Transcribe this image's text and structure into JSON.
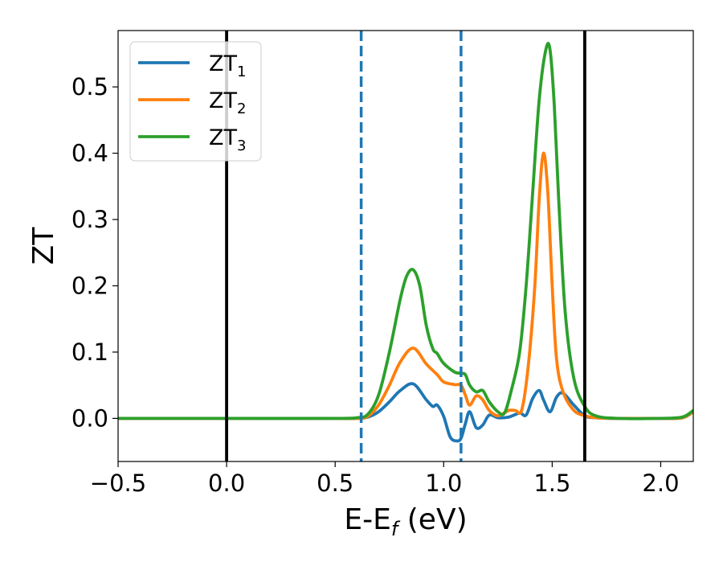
{
  "chart_data": {
    "type": "line",
    "xlabel_main": "E-E",
    "xlabel_sub": "f",
    "xlabel_unit": " (eV)",
    "ylabel": "ZT",
    "xlim": [
      -0.5,
      2.15
    ],
    "ylim": [
      -0.065,
      0.585
    ],
    "xticks": [
      -0.5,
      0.0,
      0.5,
      1.0,
      1.5,
      2.0
    ],
    "xtick_labels": [
      "−0.5",
      "0.0",
      "0.5",
      "1.0",
      "1.5",
      "2.0"
    ],
    "yticks": [
      0.0,
      0.1,
      0.2,
      0.3,
      0.4,
      0.5
    ],
    "ytick_labels": [
      "0.0",
      "0.1",
      "0.2",
      "0.3",
      "0.4",
      "0.5"
    ],
    "grid": false,
    "legend_position": "top-left",
    "vlines": [
      {
        "x": 0.0,
        "color": "#000000",
        "style": "solid"
      },
      {
        "x": 1.65,
        "color": "#000000",
        "style": "solid"
      },
      {
        "x": 0.62,
        "color": "#1f77b4",
        "style": "dashed"
      },
      {
        "x": 1.08,
        "color": "#1f77b4",
        "style": "dashed"
      }
    ],
    "series": [
      {
        "name_main": "ZT",
        "name_sub": "1",
        "color": "#1f77b4",
        "x": [
          -0.5,
          0.0,
          0.5,
          0.6,
          0.65,
          0.7,
          0.75,
          0.8,
          0.86,
          0.92,
          0.95,
          0.97,
          1.0,
          1.03,
          1.06,
          1.08,
          1.1,
          1.12,
          1.15,
          1.18,
          1.21,
          1.25,
          1.3,
          1.35,
          1.38,
          1.41,
          1.44,
          1.46,
          1.49,
          1.52,
          1.55,
          1.6,
          1.65,
          1.7,
          1.8,
          2.0,
          2.1,
          2.15
        ],
        "y": [
          0.0,
          0.0,
          0.0,
          0.0,
          0.002,
          0.01,
          0.025,
          0.042,
          0.052,
          0.028,
          0.018,
          0.02,
          0.003,
          -0.028,
          -0.034,
          -0.03,
          -0.008,
          0.01,
          -0.014,
          -0.01,
          0.005,
          0.001,
          0.002,
          0.008,
          0.005,
          0.03,
          0.042,
          0.028,
          0.01,
          0.032,
          0.038,
          0.02,
          0.004,
          0.001,
          0.0,
          0.0,
          0.001,
          0.01
        ]
      },
      {
        "name_main": "ZT",
        "name_sub": "2",
        "color": "#ff7f0e",
        "x": [
          -0.5,
          0.0,
          0.5,
          0.6,
          0.65,
          0.7,
          0.75,
          0.8,
          0.86,
          0.92,
          0.97,
          1.0,
          1.05,
          1.08,
          1.1,
          1.12,
          1.15,
          1.18,
          1.21,
          1.25,
          1.3,
          1.33,
          1.36,
          1.39,
          1.42,
          1.44,
          1.46,
          1.48,
          1.5,
          1.52,
          1.55,
          1.6,
          1.65,
          1.7,
          1.8,
          2.0,
          2.1,
          2.15
        ],
        "y": [
          0.0,
          0.0,
          0.0,
          0.0,
          0.003,
          0.02,
          0.05,
          0.085,
          0.106,
          0.082,
          0.066,
          0.055,
          0.051,
          0.05,
          0.035,
          0.02,
          0.034,
          0.028,
          0.012,
          0.004,
          0.012,
          0.012,
          0.013,
          0.08,
          0.2,
          0.33,
          0.4,
          0.34,
          0.2,
          0.09,
          0.04,
          0.012,
          0.004,
          0.001,
          0.0,
          0.0,
          0.001,
          0.01
        ]
      },
      {
        "name_main": "ZT",
        "name_sub": "3",
        "color": "#2ca02c",
        "x": [
          -0.5,
          0.0,
          0.5,
          0.6,
          0.65,
          0.7,
          0.75,
          0.8,
          0.83,
          0.86,
          0.89,
          0.92,
          0.95,
          0.97,
          1.0,
          1.05,
          1.08,
          1.1,
          1.12,
          1.15,
          1.18,
          1.21,
          1.25,
          1.28,
          1.31,
          1.35,
          1.38,
          1.41,
          1.44,
          1.47,
          1.49,
          1.51,
          1.53,
          1.56,
          1.6,
          1.65,
          1.7,
          1.8,
          2.0,
          2.1,
          2.15
        ],
        "y": [
          0.0,
          0.0,
          0.0,
          0.001,
          0.006,
          0.035,
          0.1,
          0.18,
          0.215,
          0.224,
          0.2,
          0.14,
          0.105,
          0.098,
          0.083,
          0.07,
          0.068,
          0.066,
          0.05,
          0.04,
          0.042,
          0.025,
          0.01,
          0.008,
          0.04,
          0.1,
          0.2,
          0.34,
          0.48,
          0.555,
          0.556,
          0.47,
          0.33,
          0.16,
          0.06,
          0.018,
          0.004,
          0.0,
          0.0,
          0.002,
          0.012
        ]
      }
    ]
  }
}
